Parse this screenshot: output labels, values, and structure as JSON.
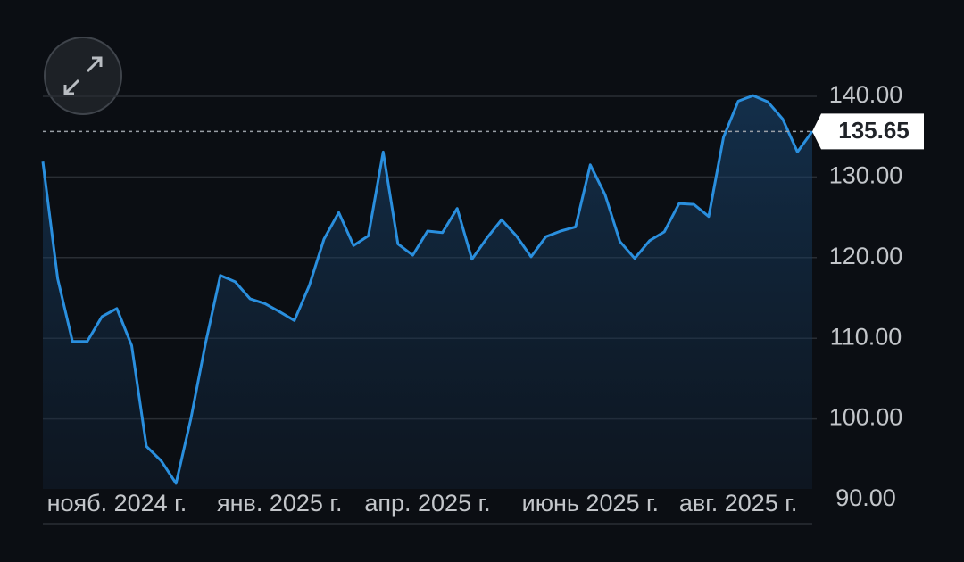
{
  "chart_data": {
    "type": "line",
    "categories": [
      null,
      null,
      null,
      null,
      null,
      "нояб. 2024 г.",
      null,
      null,
      null,
      null,
      null,
      null,
      null,
      null,
      null,
      null,
      "янв. 2025 г.",
      null,
      null,
      null,
      null,
      null,
      null,
      null,
      null,
      null,
      "апр. 2025 г.",
      null,
      null,
      null,
      null,
      null,
      null,
      null,
      null,
      null,
      null,
      "июнь 2025 г.",
      null,
      null,
      null,
      null,
      null,
      null,
      null,
      null,
      null,
      "авг. 2025 г.",
      null,
      null,
      null,
      null,
      null
    ],
    "series": [
      {
        "color": "#2a8fde",
        "values": [
          131.9,
          117.4,
          109.6,
          109.6,
          112.7,
          113.7,
          109.1,
          96.6,
          94.8,
          92.0,
          100.0,
          109.4,
          117.8,
          117.0,
          114.9,
          114.3,
          113.3,
          112.2,
          116.5,
          122.3,
          125.6,
          121.5,
          122.7,
          133.1,
          121.7,
          120.3,
          123.3,
          123.1,
          126.1,
          119.8,
          122.4,
          124.7,
          122.7,
          120.1,
          122.6,
          123.3,
          123.8,
          131.5,
          127.8,
          122.0,
          119.9,
          122.1,
          123.2,
          126.7,
          126.6,
          125.1,
          134.9,
          139.4,
          140.1,
          139.3,
          137.2,
          133.1,
          135.65
        ]
      }
    ],
    "ylim": [
      90,
      140
    ],
    "yticks": [
      {
        "value": 90,
        "label": "90.00"
      },
      {
        "value": 100,
        "label": "100.00"
      },
      {
        "value": 110,
        "label": "110.00"
      },
      {
        "value": 120,
        "label": "120.00"
      },
      {
        "value": 130,
        "label": "130.00"
      },
      {
        "value": 140,
        "label": "140.00"
      }
    ],
    "grid": true,
    "reference_line": {
      "value": 135.65,
      "label": "135.65"
    }
  }
}
